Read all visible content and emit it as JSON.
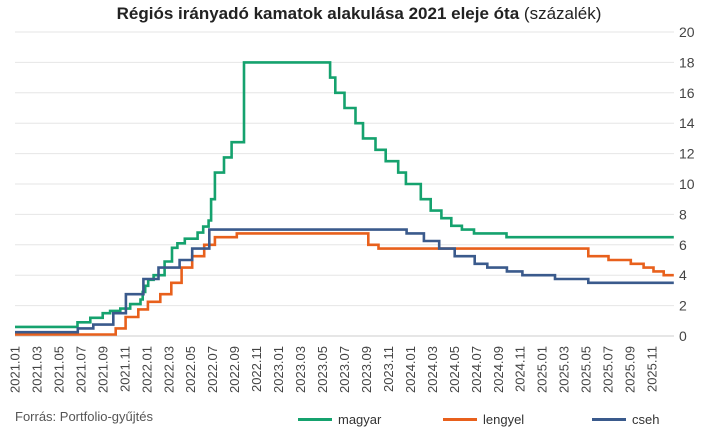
{
  "chart_data": {
    "type": "line",
    "title": "Régiós irányadó kamatok alakulása 2021 eleje óta",
    "title_suffix": "(százalék)",
    "source": "Forrás: Portfolio-gyűjtés",
    "y_axis": {
      "position": "right",
      "range": [
        0,
        20
      ],
      "ticks": [
        0,
        2,
        4,
        6,
        8,
        10,
        12,
        14,
        16,
        18,
        20
      ]
    },
    "x_axis": {
      "range": [
        "2021.01",
        "2025.12"
      ],
      "tick_labels": [
        "2021.01",
        "2021.03",
        "2021.05",
        "2021.07",
        "2021.09",
        "2021.11",
        "2022.01",
        "2022.03",
        "2022.05",
        "2022.07",
        "2022.09",
        "2022.11",
        "2023.01",
        "2023.03",
        "2023.05",
        "2023.07",
        "2023.09",
        "2023.11",
        "2024.01",
        "2024.03",
        "2024.05",
        "2024.07",
        "2024.09",
        "2024.11",
        "2025.01",
        "2025.03",
        "2025.05",
        "2025.07",
        "2025.09",
        "2025.11"
      ]
    },
    "grid": "horizontal",
    "legend_position": "bottom",
    "series": [
      {
        "name": "magyar",
        "color": "#15A26E",
        "points": [
          [
            "2021.01.01",
            0.6
          ],
          [
            "2021.06.22",
            0.9
          ],
          [
            "2021.07.27",
            1.2
          ],
          [
            "2021.08.31",
            1.5
          ],
          [
            "2021.09.21",
            1.65
          ],
          [
            "2021.10.19",
            1.8
          ],
          [
            "2021.11.16",
            2.1
          ],
          [
            "2021.12.14",
            2.4
          ],
          [
            "2021.12.20",
            2.9
          ],
          [
            "2021.12.27",
            3.3
          ],
          [
            "2022.01.05",
            3.7
          ],
          [
            "2022.01.20",
            4.0
          ],
          [
            "2022.02.20",
            4.9
          ],
          [
            "2022.03.10",
            5.8
          ],
          [
            "2022.03.25",
            6.1
          ],
          [
            "2022.04.15",
            6.4
          ],
          [
            "2022.05.20",
            6.8
          ],
          [
            "2022.06.05",
            7.2
          ],
          [
            "2022.06.20",
            7.6
          ],
          [
            "2022.06.27",
            9.0
          ],
          [
            "2022.07.07",
            10.75
          ],
          [
            "2022.08.02",
            11.75
          ],
          [
            "2022.08.23",
            12.75
          ],
          [
            "2022.09.27",
            18.0
          ],
          [
            "2023.05.22",
            17.0
          ],
          [
            "2023.06.06",
            16.0
          ],
          [
            "2023.07.01",
            15.0
          ],
          [
            "2023.08.01",
            14.0
          ],
          [
            "2023.08.22",
            13.0
          ],
          [
            "2023.09.26",
            12.25
          ],
          [
            "2023.10.24",
            11.5
          ],
          [
            "2023.11.28",
            10.75
          ],
          [
            "2023.12.19",
            10.0
          ],
          [
            "2024.01.30",
            9.0
          ],
          [
            "2024.02.27",
            8.25
          ],
          [
            "2024.03.26",
            7.75
          ],
          [
            "2024.04.23",
            7.25
          ],
          [
            "2024.05.22",
            7.0
          ],
          [
            "2024.06.25",
            6.75
          ],
          [
            "2024.09.24",
            6.5
          ],
          [
            "2025.12.31",
            6.5
          ]
        ]
      },
      {
        "name": "lengyel",
        "color": "#E8601C",
        "points": [
          [
            "2021.01.01",
            0.1
          ],
          [
            "2021.10.06",
            0.5
          ],
          [
            "2021.11.03",
            1.25
          ],
          [
            "2021.12.08",
            1.75
          ],
          [
            "2022.01.04",
            2.25
          ],
          [
            "2022.02.08",
            2.75
          ],
          [
            "2022.03.08",
            3.5
          ],
          [
            "2022.04.06",
            4.5
          ],
          [
            "2022.05.05",
            5.25
          ],
          [
            "2022.06.08",
            6.0
          ],
          [
            "2022.07.07",
            6.5
          ],
          [
            "2022.09.07",
            6.75
          ],
          [
            "2023.09.06",
            6.0
          ],
          [
            "2023.10.04",
            5.75
          ],
          [
            "2024.12.31",
            5.75
          ],
          [
            "2025.05.07",
            5.25
          ],
          [
            "2025.07.02",
            5.0
          ],
          [
            "2025.09.03",
            4.75
          ],
          [
            "2025.10.08",
            4.5
          ],
          [
            "2025.11.05",
            4.25
          ],
          [
            "2025.12.03",
            4.0
          ],
          [
            "2025.12.31",
            4.0
          ]
        ]
      },
      {
        "name": "cseh",
        "color": "#3A5A8C",
        "points": [
          [
            "2021.01.01",
            0.25
          ],
          [
            "2021.06.23",
            0.5
          ],
          [
            "2021.08.05",
            0.75
          ],
          [
            "2021.09.30",
            1.5
          ],
          [
            "2021.11.04",
            2.75
          ],
          [
            "2021.12.22",
            3.75
          ],
          [
            "2022.02.03",
            4.5
          ],
          [
            "2022.03.31",
            5.0
          ],
          [
            "2022.05.05",
            5.75
          ],
          [
            "2022.06.22",
            7.0
          ],
          [
            "2023.12.21",
            6.75
          ],
          [
            "2024.02.08",
            6.25
          ],
          [
            "2024.03.20",
            5.75
          ],
          [
            "2024.05.02",
            5.25
          ],
          [
            "2024.06.27",
            4.75
          ],
          [
            "2024.08.01",
            4.5
          ],
          [
            "2024.09.25",
            4.25
          ],
          [
            "2024.11.07",
            4.0
          ],
          [
            "2025.02.06",
            3.75
          ],
          [
            "2025.05.07",
            3.5
          ],
          [
            "2025.12.31",
            3.5
          ]
        ]
      }
    ]
  }
}
